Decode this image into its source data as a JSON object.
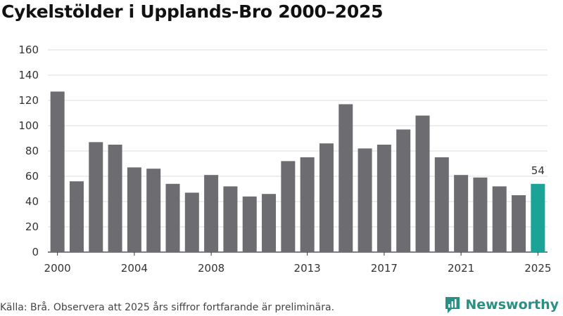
{
  "chart_data": {
    "type": "bar",
    "title": "Cykelstölder i Upplands-Bro 2000–2025",
    "xlabel": "",
    "ylabel": "",
    "ylim": [
      0,
      160
    ],
    "yticks": [
      0,
      20,
      40,
      60,
      80,
      100,
      120,
      140,
      160
    ],
    "xtick_labels": [
      "2000",
      "2004",
      "2008",
      "2013",
      "2017",
      "2021",
      "2025"
    ],
    "categories": [
      "2000",
      "2001",
      "2002",
      "2003",
      "2004",
      "2005",
      "2006",
      "2007",
      "2008",
      "2009",
      "2010",
      "2011",
      "2012",
      "2013",
      "2014",
      "2015",
      "2016",
      "2017",
      "2018",
      "2019",
      "2020",
      "2021",
      "2022",
      "2023",
      "2024",
      "2025"
    ],
    "values": [
      127,
      56,
      87,
      85,
      67,
      66,
      54,
      47,
      61,
      52,
      44,
      46,
      72,
      75,
      86,
      117,
      82,
      85,
      97,
      108,
      75,
      61,
      59,
      52,
      45,
      54
    ],
    "highlight": {
      "category": "2025",
      "label": "54"
    },
    "grid": true
  },
  "colors": {
    "bar": "#6d6c71",
    "highlight": "#1aa396",
    "grid": "#dcdcdc",
    "axis": "#333333"
  },
  "footer": {
    "source": "Källa: Brå. Observera att 2025 års siffror fortfarande är preliminära.",
    "brand": "Newsworthy"
  },
  "icons": {
    "brand": "newsworthy-logo-icon"
  }
}
